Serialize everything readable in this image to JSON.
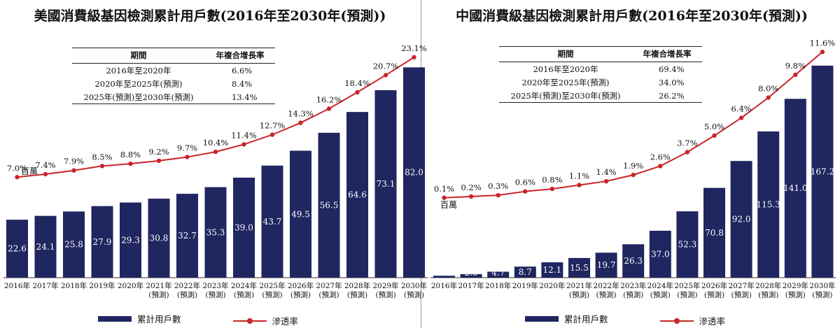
{
  "colors": {
    "bar": "#1f2660",
    "line": "#c8252a",
    "bar_label": "#ffffff"
  },
  "chart_data": [
    {
      "type": "bar+line",
      "title": "美國消費級基因檢測累計用戶數(2016年至2030年(預測))",
      "unit_label": "百萬",
      "categories": [
        [
          "2016年"
        ],
        [
          "2017年"
        ],
        [
          "2018年"
        ],
        [
          "2019年"
        ],
        [
          "2020年"
        ],
        [
          "2021年",
          "(預測)"
        ],
        [
          "2022年",
          "(預測)"
        ],
        [
          "2023年",
          "(預測)"
        ],
        [
          "2024年",
          "(預測)"
        ],
        [
          "2025年",
          "(預測)"
        ],
        [
          "2026年",
          "(預測)"
        ],
        [
          "2027年",
          "(預測)"
        ],
        [
          "2028年",
          "(預測)"
        ],
        [
          "2029年",
          "(預測)"
        ],
        [
          "2030年",
          "(預測)"
        ]
      ],
      "bar_series": {
        "name": "累計用戶數",
        "values": [
          22.6,
          24.1,
          25.8,
          27.9,
          29.3,
          30.8,
          32.7,
          35.3,
          39.0,
          43.7,
          49.5,
          56.5,
          64.6,
          73.1,
          82.0
        ]
      },
      "line_series": {
        "name": "滲透率",
        "values": [
          7.0,
          7.4,
          7.9,
          8.5,
          8.8,
          9.2,
          9.7,
          10.4,
          11.4,
          12.7,
          14.3,
          16.2,
          18.4,
          20.7,
          23.1
        ],
        "suffix": "%"
      },
      "bar_max": 90,
      "line_range": [
        -6.5,
        24.5
      ],
      "cagr_table": {
        "headers": [
          "期間",
          "年複合增長率"
        ],
        "rows": [
          [
            "2016年至2020年",
            "6.6%"
          ],
          [
            "2020年至2025年(預測)",
            "8.4%"
          ],
          [
            "2025年(預測)至2030年(預測)",
            "13.4%"
          ]
        ]
      },
      "legend": {
        "bar_label": "累計用戶數",
        "line_label": "滲透率"
      }
    },
    {
      "type": "bar+line",
      "title": "中國消費級基因檢測累計用戶數(2016年至2030年(預測))",
      "unit_label": "百萬",
      "categories": [
        [
          "2016年"
        ],
        [
          "2017年"
        ],
        [
          "2018年"
        ],
        [
          "2019年"
        ],
        [
          "2020年"
        ],
        [
          "2021年",
          "(預測)"
        ],
        [
          "2022年",
          "(預測)"
        ],
        [
          "2023年",
          "(預測)"
        ],
        [
          "2024年",
          "(預測)"
        ],
        [
          "2025年",
          "(預測)"
        ],
        [
          "2026年",
          "(預測)"
        ],
        [
          "2027年",
          "(預測)"
        ],
        [
          "2028年",
          "(預測)"
        ],
        [
          "2029年",
          "(預測)"
        ],
        [
          "2030年",
          "(預測)"
        ]
      ],
      "bar_series": {
        "name": "累計用戶數",
        "values": [
          1.5,
          2.8,
          4.7,
          8.7,
          12.1,
          15.5,
          19.7,
          26.3,
          37.0,
          52.3,
          70.8,
          92.0,
          115.3,
          141.0,
          167.2
        ]
      },
      "line_series": {
        "name": "滲透率",
        "values": [
          0.1,
          0.2,
          0.3,
          0.6,
          0.8,
          1.1,
          1.4,
          1.9,
          2.6,
          3.7,
          5.0,
          6.4,
          8.0,
          9.8,
          11.6
        ],
        "suffix": "%"
      },
      "bar_max": 182,
      "line_range": [
        -6.2,
        12.0
      ],
      "cagr_table": {
        "headers": [
          "期間",
          "年複合增長率"
        ],
        "rows": [
          [
            "2016年至2020年",
            "69.4%"
          ],
          [
            "2020年至2025年(預測)",
            "34.0%"
          ],
          [
            "2025年(預測)至2030年(預測)",
            "26.2%"
          ]
        ]
      },
      "legend": {
        "bar_label": "累計用戶數",
        "line_label": "滲透率"
      }
    }
  ]
}
